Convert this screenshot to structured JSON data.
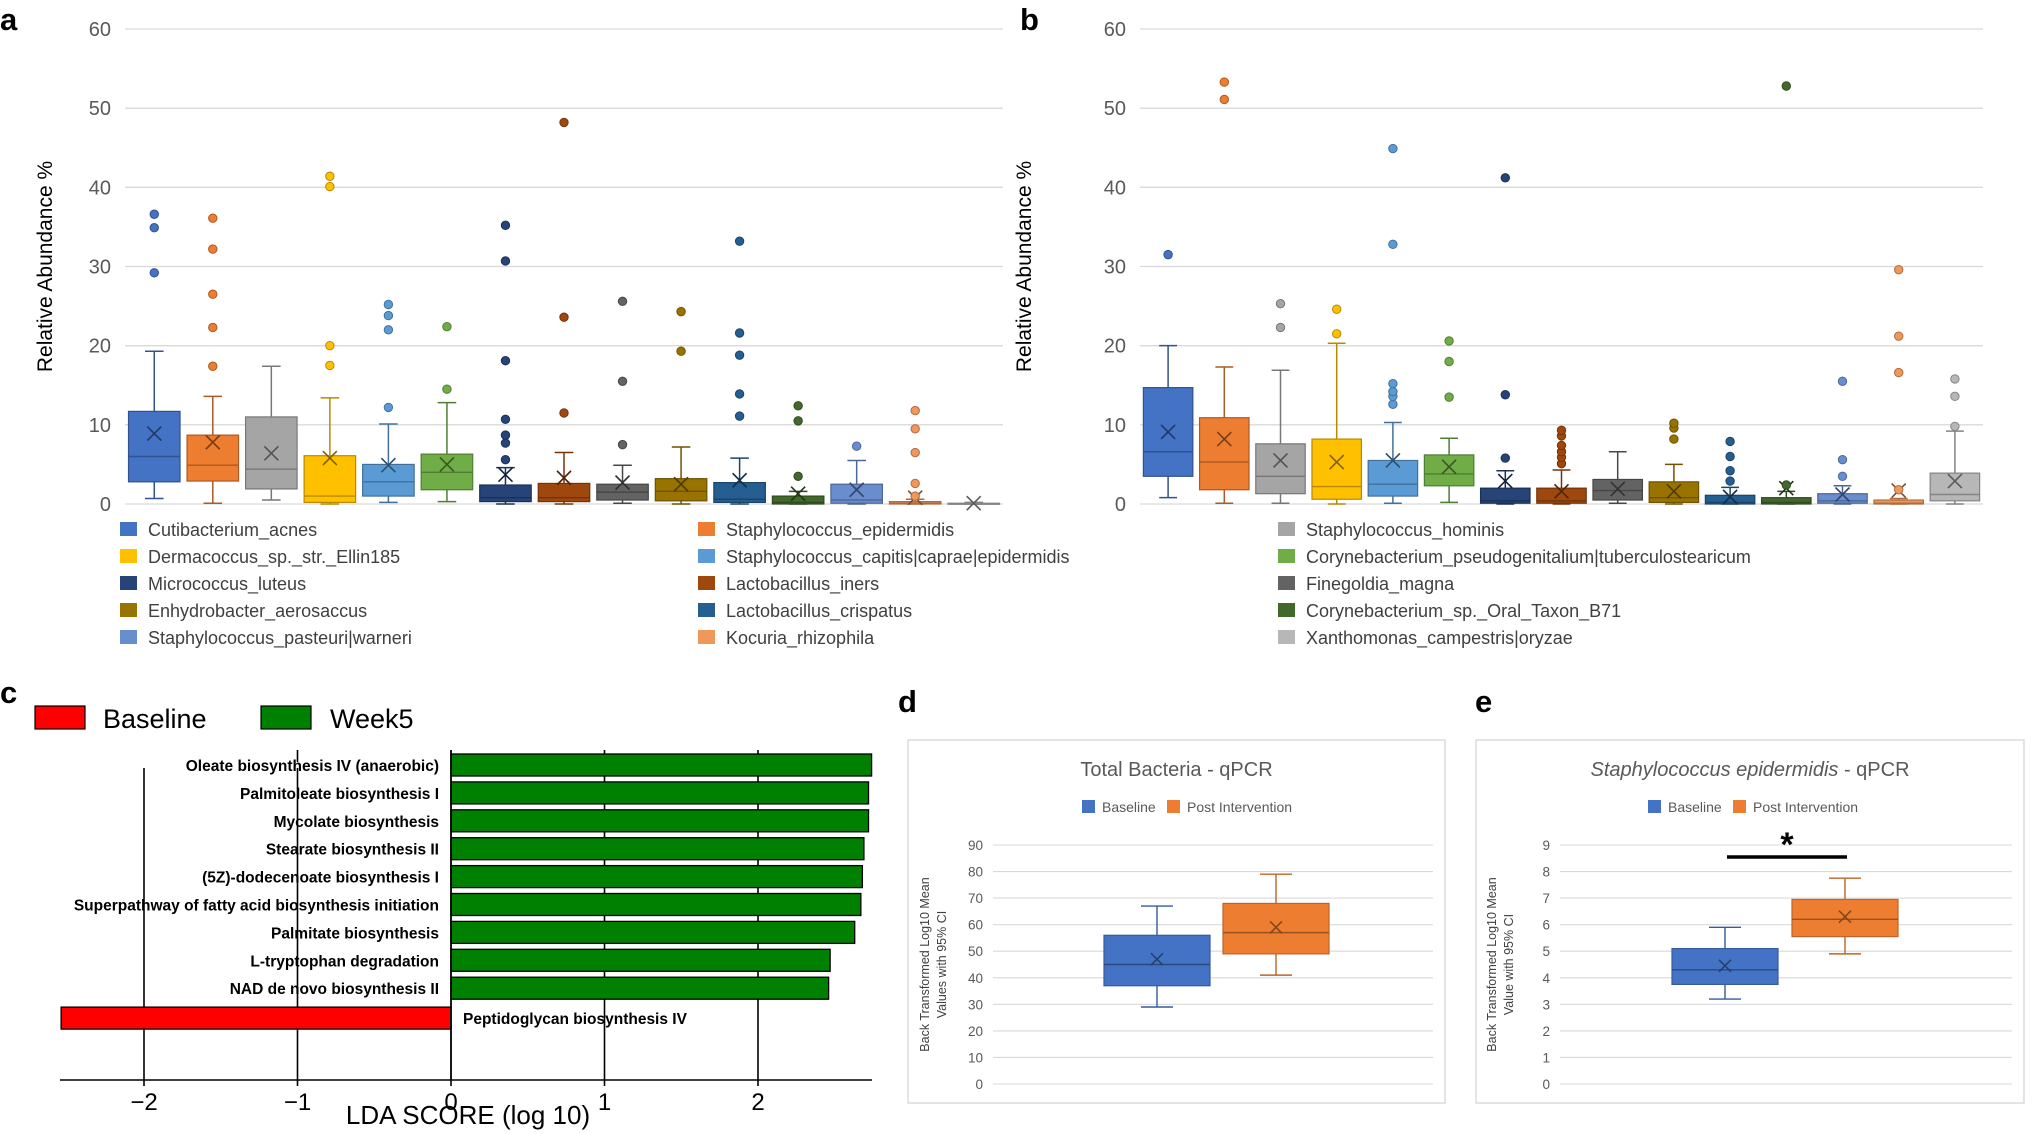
{
  "panel_labels": {
    "a": "a",
    "b": "b",
    "c": "c",
    "d": "d",
    "e": "e"
  },
  "colors": {
    "box_grid": "#d9d9d9",
    "lda_baseline": "#ff0000",
    "lda_week5": "#008000",
    "qpcr_baseline": "#4472c4",
    "qpcr_post": "#ed7d31"
  },
  "chart_data": [
    {
      "id": "a",
      "type": "box",
      "ylabel": "Relative Abundance %",
      "ylim": [
        0,
        60
      ],
      "yticks": [
        0,
        10,
        20,
        30,
        40,
        50,
        60
      ],
      "grid": true,
      "series": [
        {
          "color": "#4472c4",
          "min": 0.7,
          "q1": 2.8,
          "median": 6.0,
          "q3": 11.7,
          "max": 19.3,
          "mean": 8.9,
          "outliers": [
            29.2,
            34.9,
            36.6
          ]
        },
        {
          "color": "#ed7d31",
          "min": 0.1,
          "q1": 2.9,
          "median": 4.9,
          "q3": 8.7,
          "max": 13.6,
          "mean": 7.8,
          "outliers": [
            17.4,
            22.3,
            26.5,
            32.2,
            36.1
          ]
        },
        {
          "color": "#a5a5a5",
          "min": 0.5,
          "q1": 1.9,
          "median": 4.4,
          "q3": 11.0,
          "max": 17.4,
          "mean": 6.4,
          "outliers": []
        },
        {
          "color": "#ffc000",
          "min": 0.0,
          "q1": 0.2,
          "median": 1.0,
          "q3": 6.1,
          "max": 13.4,
          "mean": 5.8,
          "outliers": [
            17.5,
            20.0,
            40.1,
            41.4
          ]
        },
        {
          "color": "#5b9bd5",
          "min": 0.2,
          "q1": 1.0,
          "median": 2.8,
          "q3": 5.0,
          "max": 10.1,
          "mean": 4.9,
          "outliers": [
            12.2,
            22.0,
            23.8,
            25.2
          ]
        },
        {
          "color": "#70ad47",
          "min": 0.3,
          "q1": 1.8,
          "median": 4.0,
          "q3": 6.3,
          "max": 12.8,
          "mean": 5.0,
          "outliers": [
            14.5,
            22.4
          ]
        },
        {
          "color": "#264478",
          "min": 0.0,
          "q1": 0.3,
          "median": 0.8,
          "q3": 2.4,
          "max": 4.6,
          "mean": 3.7,
          "outliers": [
            5.6,
            7.7,
            8.7,
            10.7,
            18.1,
            30.7,
            35.2
          ]
        },
        {
          "color": "#9e480e",
          "min": 0.0,
          "q1": 0.3,
          "median": 0.8,
          "q3": 2.6,
          "max": 6.5,
          "mean": 3.3,
          "outliers": [
            11.5,
            23.6,
            48.2
          ]
        },
        {
          "color": "#636363",
          "min": 0.1,
          "q1": 0.5,
          "median": 1.5,
          "q3": 2.5,
          "max": 4.9,
          "mean": 2.7,
          "outliers": [
            7.5,
            15.5,
            25.6
          ]
        },
        {
          "color": "#997300",
          "min": 0.0,
          "q1": 0.4,
          "median": 1.6,
          "q3": 3.2,
          "max": 7.2,
          "mean": 2.5,
          "outliers": [
            19.3,
            24.3
          ]
        },
        {
          "color": "#255e91",
          "min": 0.0,
          "q1": 0.2,
          "median": 0.6,
          "q3": 2.7,
          "max": 5.8,
          "mean": 3.0,
          "outliers": [
            11.1,
            13.9,
            18.8,
            21.6,
            33.2
          ]
        },
        {
          "color": "#43682b",
          "min": 0.0,
          "q1": 0.0,
          "median": 0.2,
          "q3": 1.0,
          "max": 1.6,
          "mean": 1.3,
          "outliers": [
            3.5,
            10.5,
            12.4
          ]
        },
        {
          "color": "#698ed0",
          "min": 0.0,
          "q1": 0.1,
          "median": 0.5,
          "q3": 2.5,
          "max": 5.5,
          "mean": 1.8,
          "outliers": [
            7.3
          ]
        },
        {
          "color": "#f1975a",
          "min": 0.0,
          "q1": 0.0,
          "median": 0.1,
          "q3": 0.3,
          "max": 0.6,
          "mean": 0.8,
          "outliers": [
            1.0,
            2.6,
            6.5,
            9.5,
            11.8
          ]
        },
        {
          "color": "#b7b7b7",
          "min": 0.0,
          "q1": 0.0,
          "median": 0.0,
          "q3": 0.1,
          "max": 0.2,
          "mean": 0.1,
          "outliers": []
        }
      ]
    },
    {
      "id": "b",
      "type": "box",
      "ylabel": "Relative Abundance %",
      "ylim": [
        0,
        60
      ],
      "yticks": [
        0,
        10,
        20,
        30,
        40,
        50,
        60
      ],
      "grid": true,
      "series": [
        {
          "color": "#4472c4",
          "min": 0.8,
          "q1": 3.5,
          "median": 6.6,
          "q3": 14.7,
          "max": 20.0,
          "mean": 9.1,
          "outliers": [
            31.5
          ]
        },
        {
          "color": "#ed7d31",
          "min": 0.1,
          "q1": 1.8,
          "median": 5.3,
          "q3": 10.9,
          "max": 17.3,
          "mean": 8.2,
          "outliers": [
            51.1,
            53.3
          ]
        },
        {
          "color": "#a5a5a5",
          "min": 0.1,
          "q1": 1.3,
          "median": 3.5,
          "q3": 7.6,
          "max": 16.9,
          "mean": 5.5,
          "outliers": [
            22.3,
            25.3
          ]
        },
        {
          "color": "#ffc000",
          "min": 0.0,
          "q1": 0.6,
          "median": 2.2,
          "q3": 8.2,
          "max": 20.3,
          "mean": 5.3,
          "outliers": [
            21.5,
            24.6
          ]
        },
        {
          "color": "#5b9bd5",
          "min": 0.1,
          "q1": 1.0,
          "median": 2.5,
          "q3": 5.5,
          "max": 10.3,
          "mean": 5.5,
          "outliers": [
            12.6,
            13.6,
            14.2,
            15.2,
            32.8,
            44.9
          ]
        },
        {
          "color": "#70ad47",
          "min": 0.2,
          "q1": 2.3,
          "median": 3.8,
          "q3": 6.2,
          "max": 8.3,
          "mean": 4.7,
          "outliers": [
            13.5,
            18.0,
            20.6
          ]
        },
        {
          "color": "#264478",
          "min": 0.0,
          "q1": 0.1,
          "median": 0.4,
          "q3": 2.0,
          "max": 4.2,
          "mean": 2.9,
          "outliers": [
            5.8,
            13.8,
            41.2
          ]
        },
        {
          "color": "#9e480e",
          "min": 0.0,
          "q1": 0.1,
          "median": 0.4,
          "q3": 2.0,
          "max": 4.3,
          "mean": 1.6,
          "outliers": [
            5.1,
            5.9,
            6.6,
            7.4,
            8.6,
            9.3
          ]
        },
        {
          "color": "#636363",
          "min": 0.1,
          "q1": 0.5,
          "median": 1.7,
          "q3": 3.1,
          "max": 6.6,
          "mean": 1.9,
          "outliers": []
        },
        {
          "color": "#997300",
          "min": 0.0,
          "q1": 0.2,
          "median": 0.8,
          "q3": 2.8,
          "max": 5.0,
          "mean": 1.6,
          "outliers": [
            8.2,
            9.6,
            10.2
          ]
        },
        {
          "color": "#255e91",
          "min": 0.0,
          "q1": 0.0,
          "median": 0.2,
          "q3": 1.1,
          "max": 2.1,
          "mean": 0.9,
          "outliers": [
            2.9,
            4.2,
            6.0,
            7.9
          ]
        },
        {
          "color": "#43682b",
          "min": 0.0,
          "q1": 0.0,
          "median": 0.2,
          "q3": 0.8,
          "max": 1.6,
          "mean": 2.0,
          "outliers": [
            2.4,
            52.8
          ]
        },
        {
          "color": "#698ed0",
          "min": 0.0,
          "q1": 0.1,
          "median": 0.4,
          "q3": 1.3,
          "max": 2.3,
          "mean": 1.2,
          "outliers": [
            3.5,
            5.6,
            15.5
          ]
        },
        {
          "color": "#f1975a",
          "min": 0.0,
          "q1": 0.0,
          "median": 0.1,
          "q3": 0.5,
          "max": 0.7,
          "mean": 1.7,
          "outliers": [
            1.8,
            16.6,
            21.2,
            29.6
          ]
        },
        {
          "color": "#b7b7b7",
          "min": 0.0,
          "q1": 0.4,
          "median": 1.2,
          "q3": 3.9,
          "max": 9.2,
          "mean": 2.9,
          "outliers": [
            9.8,
            13.6,
            15.8
          ]
        }
      ]
    },
    {
      "id": "c",
      "type": "bar",
      "orientation": "horizontal",
      "xlabel": "LDA SCORE (log 10)",
      "xlim": [
        -2.55,
        2.8
      ],
      "xticks": [
        -2,
        -1,
        0,
        1,
        2
      ],
      "xtick_labels": [
        "−2",
        "−1",
        "0",
        "1",
        "2"
      ],
      "legend": [
        {
          "name": "Baseline",
          "color": "#ff0000"
        },
        {
          "name": "Week5",
          "color": "#008000"
        }
      ],
      "categories": [
        "Oleate biosynthesis IV (anaerobic)",
        "Palmitoleate biosynthesis I",
        "Mycolate biosynthesis",
        "Stearate biosynthesis II",
        "(5Z)-dodecenoate biosynthesis I",
        "Superpathway of fatty acid biosynthesis initiation",
        "Palmitate biosynthesis",
        "L-tryptophan degradation",
        "NAD de novo biosynthesis II",
        "Peptidoglycan biosynthesis IV"
      ],
      "values": [
        2.74,
        2.72,
        2.72,
        2.69,
        2.68,
        2.67,
        2.63,
        2.47,
        2.46,
        -2.54
      ],
      "groups": [
        "Week5",
        "Week5",
        "Week5",
        "Week5",
        "Week5",
        "Week5",
        "Week5",
        "Week5",
        "Week5",
        "Baseline"
      ]
    },
    {
      "id": "d",
      "type": "box",
      "title": "Total Bacteria - qPCR",
      "ylabel_lines": [
        "Back Transformed Log10 Mean",
        "Values with 95% CI"
      ],
      "ylim": [
        0,
        90
      ],
      "yticks": [
        0,
        10,
        20,
        30,
        40,
        50,
        60,
        70,
        80,
        90
      ],
      "grid": true,
      "legend": [
        "Baseline",
        "Post Intervention"
      ],
      "series": [
        {
          "name": "Baseline",
          "color": "#4472c4",
          "min": 29,
          "q1": 37,
          "median": 45,
          "q3": 56,
          "max": 67,
          "mean": 47
        },
        {
          "name": "Post Intervention",
          "color": "#ed7d31",
          "min": 41,
          "q1": 49,
          "median": 57,
          "q3": 68,
          "max": 79,
          "mean": 59
        }
      ]
    },
    {
      "id": "e",
      "type": "box",
      "title": "Staphylococcus epidermidis - qPCR",
      "title_italic": "Staphylococcus epidermidis",
      "title_suffix": " - qPCR",
      "ylabel_lines": [
        "Back Transformed Log10 Mean",
        "Value with 95% CI"
      ],
      "ylim": [
        0,
        9
      ],
      "yticks": [
        0,
        1,
        2,
        3,
        4,
        5,
        6,
        7,
        8,
        9
      ],
      "grid": true,
      "legend": [
        "Baseline",
        "Post Intervention"
      ],
      "significance": "*",
      "series": [
        {
          "name": "Baseline",
          "color": "#4472c4",
          "min": 3.2,
          "q1": 3.75,
          "median": 4.3,
          "q3": 5.1,
          "max": 5.9,
          "mean": 4.45
        },
        {
          "name": "Post Intervention",
          "color": "#ed7d31",
          "min": 4.9,
          "q1": 5.55,
          "median": 6.2,
          "q3": 6.95,
          "max": 7.75,
          "mean": 6.3
        }
      ]
    }
  ],
  "species_legend": [
    {
      "name": "Cutibacterium_acnes",
      "color": "#4472c4"
    },
    {
      "name": "Staphylococcus_epidermidis",
      "color": "#ed7d31"
    },
    {
      "name": "Staphylococcus_hominis",
      "color": "#a5a5a5"
    },
    {
      "name": "Dermacoccus_sp._str._Ellin185",
      "color": "#ffc000"
    },
    {
      "name": "Staphylococcus_capitis|caprae|epidermidis",
      "color": "#5b9bd5"
    },
    {
      "name": "Corynebacterium_pseudogenitalium|tuberculostearicum",
      "color": "#70ad47"
    },
    {
      "name": "Micrococcus_luteus",
      "color": "#264478"
    },
    {
      "name": "Lactobacillus_iners",
      "color": "#9e480e"
    },
    {
      "name": "Finegoldia_magna",
      "color": "#636363"
    },
    {
      "name": "Enhydrobacter_aerosaccus",
      "color": "#997300"
    },
    {
      "name": "Lactobacillus_crispatus",
      "color": "#255e91"
    },
    {
      "name": "Corynebacterium_sp._Oral_Taxon_B71",
      "color": "#43682b"
    },
    {
      "name": "Staphylococcus_pasteuri|warneri",
      "color": "#698ed0"
    },
    {
      "name": "Kocuria_rhizophila",
      "color": "#f1975a"
    },
    {
      "name": "Xanthomonas_campestris|oryzae",
      "color": "#b7b7b7"
    }
  ]
}
